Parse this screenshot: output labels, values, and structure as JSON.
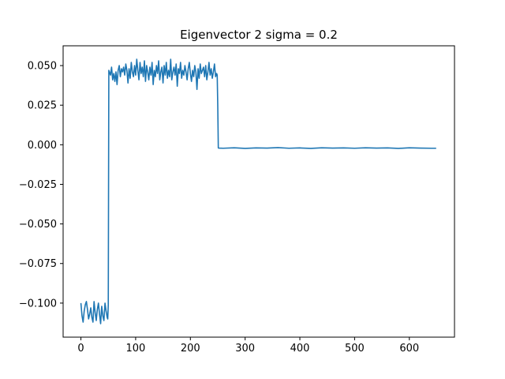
{
  "chart_data": {
    "type": "line",
    "title": "Eigenvector 2 sigma = 0.2",
    "xlabel": "",
    "ylabel": "",
    "xlim": [
      -32.5,
      682.5
    ],
    "ylim": [
      -0.1215,
      0.0625
    ],
    "xticks": [
      0,
      100,
      200,
      300,
      400,
      500,
      600
    ],
    "yticks": [
      0.05,
      0.025,
      0.0,
      -0.025,
      -0.05,
      -0.075,
      -0.1
    ],
    "xtick_labels": [
      "0",
      "100",
      "200",
      "300",
      "400",
      "500",
      "600"
    ],
    "ytick_labels": [
      "0.050",
      "0.025",
      "0.000",
      "−0.025",
      "−0.050",
      "−0.075",
      "−0.100"
    ],
    "grid": false,
    "series": [
      {
        "color": "#1f77b4",
        "x": [
          0,
          2,
          4,
          6,
          8,
          10,
          12,
          14,
          16,
          18,
          20,
          22,
          24,
          26,
          28,
          30,
          32,
          34,
          36,
          38,
          40,
          42,
          44,
          46,
          48,
          49,
          50,
          51,
          52,
          54,
          56,
          58,
          60,
          62,
          64,
          66,
          68,
          70,
          72,
          74,
          76,
          78,
          80,
          82,
          84,
          86,
          88,
          90,
          92,
          94,
          96,
          98,
          100,
          102,
          104,
          106,
          108,
          110,
          112,
          114,
          116,
          118,
          120,
          122,
          124,
          126,
          128,
          130,
          132,
          134,
          136,
          138,
          140,
          142,
          144,
          146,
          148,
          150,
          152,
          154,
          156,
          158,
          160,
          162,
          164,
          166,
          168,
          170,
          172,
          174,
          176,
          178,
          180,
          182,
          184,
          186,
          188,
          190,
          192,
          194,
          196,
          198,
          200,
          202,
          204,
          206,
          208,
          210,
          212,
          214,
          216,
          218,
          220,
          222,
          224,
          226,
          228,
          230,
          232,
          234,
          236,
          238,
          240,
          242,
          244,
          246,
          248,
          249,
          250,
          251,
          252,
          260,
          280,
          300,
          320,
          340,
          360,
          380,
          400,
          420,
          440,
          460,
          480,
          500,
          520,
          540,
          560,
          580,
          600,
          620,
          640,
          649
        ],
        "y": [
          -0.1,
          -0.108,
          -0.112,
          -0.105,
          -0.101,
          -0.099,
          -0.104,
          -0.11,
          -0.107,
          -0.103,
          -0.109,
          -0.112,
          -0.099,
          -0.106,
          -0.111,
          -0.104,
          -0.1,
          -0.107,
          -0.113,
          -0.102,
          -0.108,
          -0.111,
          -0.1,
          -0.105,
          -0.109,
          -0.11,
          -0.101,
          0.047,
          0.046,
          0.044,
          0.049,
          0.041,
          0.045,
          0.04,
          0.046,
          0.038,
          0.047,
          0.05,
          0.043,
          0.048,
          0.046,
          0.049,
          0.044,
          0.051,
          0.047,
          0.039,
          0.048,
          0.042,
          0.052,
          0.046,
          0.043,
          0.05,
          0.044,
          0.054,
          0.047,
          0.041,
          0.052,
          0.045,
          0.049,
          0.043,
          0.053,
          0.04,
          0.05,
          0.046,
          0.041,
          0.049,
          0.044,
          0.052,
          0.038,
          0.047,
          0.043,
          0.05,
          0.045,
          0.053,
          0.041,
          0.046,
          0.049,
          0.039,
          0.05,
          0.044,
          0.052,
          0.042,
          0.047,
          0.043,
          0.054,
          0.041,
          0.046,
          0.049,
          0.044,
          0.051,
          0.037,
          0.048,
          0.045,
          0.052,
          0.042,
          0.047,
          0.044,
          0.05,
          0.046,
          0.041,
          0.048,
          0.052,
          0.045,
          0.04,
          0.047,
          0.043,
          0.05,
          0.046,
          0.035,
          0.048,
          0.042,
          0.051,
          0.045,
          0.047,
          0.049,
          0.043,
          0.05,
          0.041,
          0.046,
          0.052,
          0.044,
          0.048,
          0.042,
          0.046,
          0.051,
          0.043,
          0.045,
          0.044,
          0.025,
          -0.002,
          -0.0021,
          -0.0022,
          -0.0019,
          -0.0023,
          -0.002,
          -0.0021,
          -0.0018,
          -0.0022,
          -0.002,
          -0.0023,
          -0.0019,
          -0.0021,
          -0.002,
          -0.0022,
          -0.0019,
          -0.0021,
          -0.002,
          -0.0023,
          -0.0019,
          -0.0021,
          -0.0022,
          -0.0022
        ]
      }
    ]
  }
}
